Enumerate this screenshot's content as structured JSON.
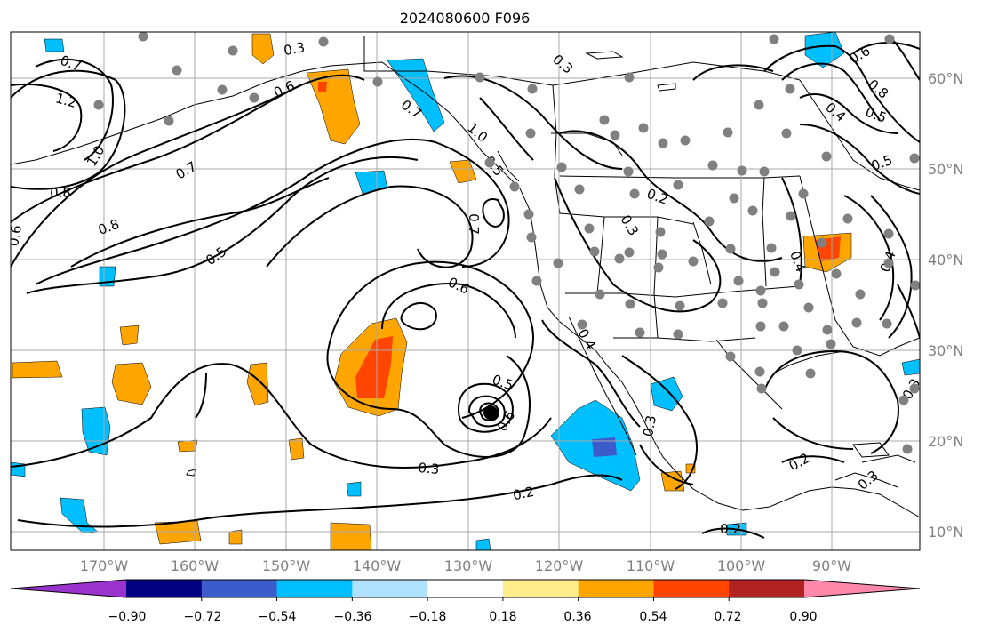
{
  "title": "2024080600 F096",
  "lon_labels": [
    "170°W",
    "160°W",
    "150°W",
    "140°W",
    "130°W",
    "120°W",
    "110°W",
    "100°W",
    "90°W"
  ],
  "lat_labels": [
    "60°N",
    "50°N",
    "40°N",
    "30°N",
    "20°N",
    "10°N"
  ],
  "colorbar": {
    "ticks": [
      "−0.90",
      "−0.72",
      "−0.54",
      "−0.36",
      "−0.18",
      "0.18",
      "0.36",
      "0.54",
      "0.72",
      "0.90"
    ],
    "colors": [
      "#9a32cd",
      "#000080",
      "#3c5ccc",
      "#00bfff",
      "#b0e2ff",
      "#ffffff",
      "#ffec8b",
      "#ffa500",
      "#ff4500",
      "#b22222",
      "#ff88aa"
    ]
  },
  "contour_labels": [
    "0.3",
    "0.7",
    "1.2",
    "1.0",
    "0.8",
    "0.6",
    "0.7",
    "0.8",
    "0.5",
    "0.6",
    "0.7",
    "1.0",
    "0.5",
    "0.7",
    "0.6",
    "0.5",
    "0.6",
    "0.3",
    "0.2",
    "0.2",
    "0.3",
    "0.4",
    "0.3",
    "0.2",
    "0.6",
    "0.8",
    "0.4",
    "0.5",
    "0.5",
    "0.4",
    "0.3",
    "0.3",
    "0.2",
    "0.3",
    "0.4"
  ]
}
